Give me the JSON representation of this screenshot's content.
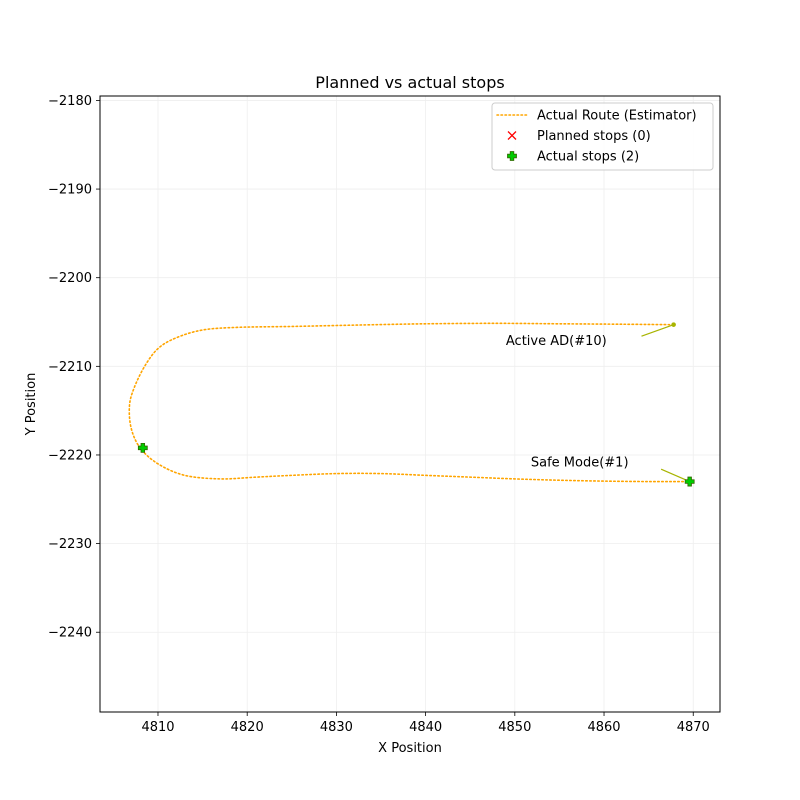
{
  "chart_data": {
    "type": "line",
    "title": "Planned vs actual stops",
    "xlabel": "X Position",
    "ylabel": "Y Position",
    "xlim": [
      4803.5,
      4873.0
    ],
    "ylim": [
      -2249.0,
      -2179.5
    ],
    "x_ticks": [
      4810,
      4820,
      4830,
      4840,
      4850,
      4860,
      4870
    ],
    "y_ticks": [
      -2180,
      -2190,
      -2200,
      -2210,
      -2220,
      -2230,
      -2240
    ],
    "grid": true,
    "legend_position": "top-right",
    "legend": [
      {
        "label": "Actual Route (Estimator)",
        "style": "dotted-line",
        "color": "#ffa500"
      },
      {
        "label": "Planned stops (0)",
        "style": "x-marker",
        "color": "#ff0000"
      },
      {
        "label": "Actual stops (2)",
        "style": "plus-marker",
        "color": "#00cc00"
      }
    ],
    "series": [
      {
        "name": "Actual Route (Estimator)",
        "color": "#ffa500",
        "points": [
          [
            4867.8,
            -2205.3
          ],
          [
            4862,
            -2205.25
          ],
          [
            4855,
            -2205.2
          ],
          [
            4848,
            -2205.15
          ],
          [
            4840,
            -2205.2
          ],
          [
            4832,
            -2205.35
          ],
          [
            4825,
            -2205.5
          ],
          [
            4819,
            -2205.6
          ],
          [
            4815,
            -2205.9
          ],
          [
            4812,
            -2206.8
          ],
          [
            4810,
            -2208.0
          ],
          [
            4808.5,
            -2210.0
          ],
          [
            4807.3,
            -2212.5
          ],
          [
            4806.8,
            -2214.5
          ],
          [
            4807.0,
            -2217.0
          ],
          [
            4808.0,
            -2219.2
          ],
          [
            4810.0,
            -2221.0
          ],
          [
            4813.0,
            -2222.3
          ],
          [
            4817.0,
            -2222.7
          ],
          [
            4821.0,
            -2222.5
          ],
          [
            4825.0,
            -2222.3
          ],
          [
            4830.0,
            -2222.1
          ],
          [
            4835.0,
            -2222.1
          ],
          [
            4840.0,
            -2222.3
          ],
          [
            4845.0,
            -2222.5
          ],
          [
            4850.0,
            -2222.7
          ],
          [
            4855.0,
            -2222.85
          ],
          [
            4860.0,
            -2222.95
          ],
          [
            4865.0,
            -2223.0
          ],
          [
            4869.8,
            -2223.0
          ]
        ]
      }
    ],
    "planned_stops": [],
    "actual_stops": [
      {
        "x": 4808.3,
        "y": -2219.2
      },
      {
        "x": 4869.6,
        "y": -2223.0
      }
    ],
    "annotations": [
      {
        "text": "Active AD(#10)",
        "x": 4867.8,
        "y": -2205.3,
        "text_x": 4849.0,
        "text_y": -2207.6,
        "anchor_x": 4864.2,
        "anchor_y": -2206.6,
        "color": "#a8b400"
      },
      {
        "text": "Safe Mode(#1)",
        "x": 4869.6,
        "y": -2223.0,
        "text_x": 4851.8,
        "text_y": -2221.3,
        "anchor_x": 4866.4,
        "anchor_y": -2221.6,
        "color": "#a8b400"
      }
    ]
  }
}
